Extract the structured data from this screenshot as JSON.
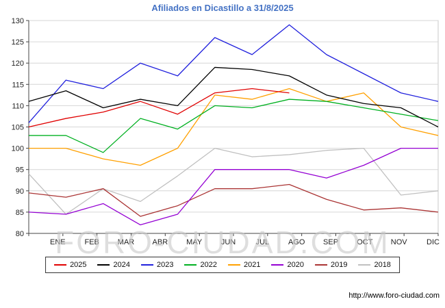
{
  "title": "Afiliados en Dicastillo a 31/8/2025",
  "watermark": "FORO-CIUDAD.COM",
  "footer_url": "http://www.foro-ciudad.com",
  "chart_data": {
    "type": "line",
    "title": "Afiliados en Dicastillo a 31/8/2025",
    "xlabel": "",
    "ylabel": "",
    "ylim": [
      80,
      130
    ],
    "ytick_step": 5,
    "grid": true,
    "legend_position": "bottom",
    "categories": [
      "ENE",
      "FEB",
      "MAR",
      "ABR",
      "MAY",
      "JUN",
      "JUL",
      "AGO",
      "SEP",
      "OCT",
      "NOV",
      "DIC"
    ],
    "series": [
      {
        "name": "2025",
        "color": "#e00000",
        "values": [
          105,
          107,
          108.5,
          111,
          108,
          113,
          114,
          113
        ]
      },
      {
        "name": "2024",
        "color": "#000000",
        "values": [
          111,
          113.5,
          109.5,
          111.5,
          110,
          119,
          118.5,
          117,
          112.5,
          110.5,
          109.5,
          105
        ]
      },
      {
        "name": "2023",
        "color": "#2020dd",
        "values": [
          106,
          116,
          114,
          120,
          117,
          126,
          122,
          129,
          122,
          117.5,
          113,
          111
        ]
      },
      {
        "name": "2022",
        "color": "#00b020",
        "values": [
          103,
          103,
          99,
          107,
          104.5,
          110,
          109.5,
          111.5,
          111,
          109.5,
          108,
          106.5
        ]
      },
      {
        "name": "2021",
        "color": "#ffa000",
        "values": [
          100,
          100,
          97.5,
          96,
          100,
          112.5,
          111.5,
          114,
          111,
          113,
          105,
          103
        ]
      },
      {
        "name": "2020",
        "color": "#9400d3",
        "values": [
          85,
          84.5,
          87,
          82,
          84.5,
          95,
          95,
          95,
          93,
          96,
          100,
          100
        ]
      },
      {
        "name": "2019",
        "color": "#aa3333",
        "values": [
          89.5,
          88.5,
          90.5,
          84,
          86.5,
          90.5,
          90.5,
          91.5,
          88,
          85.5,
          86,
          85
        ]
      },
      {
        "name": "2018",
        "color": "#c0c0c0",
        "values": [
          94,
          84.5,
          90.5,
          87.5,
          93.5,
          100,
          98,
          98.5,
          99.5,
          100,
          89,
          90
        ]
      }
    ]
  }
}
